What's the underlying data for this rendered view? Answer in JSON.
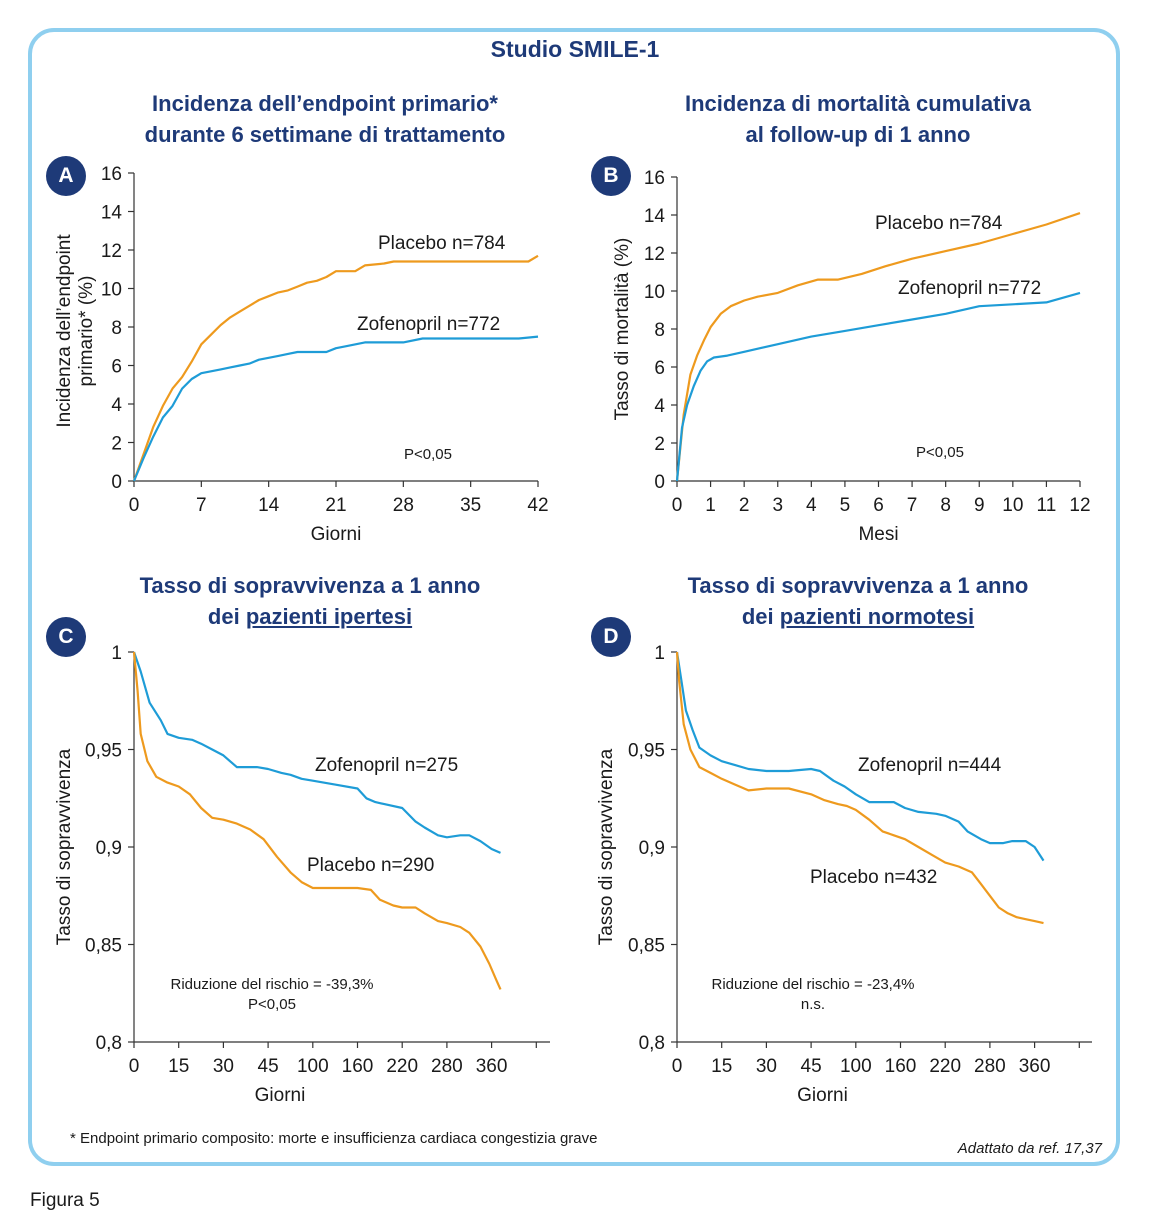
{
  "study_title": "Studio SMILE-1",
  "footnote": "* Endpoint primario composito: morte e insufficienza cardiaca congestizia grave",
  "source": "Adattato da ref. 17,37",
  "figure_label": "Figura 5",
  "colors": {
    "zofenopril": "#1e9cd7",
    "placebo": "#ee9a1e",
    "title": "#1e3a78",
    "frame": "#8fcfef"
  },
  "panels": {
    "A": {
      "badge": "A",
      "title_line1": "Incidenza dell’endpoint primario*",
      "title_line2": "durante 6 settimane di trattamento"
    },
    "B": {
      "badge": "B",
      "title_line1": "Incidenza di mortalità cumulativa",
      "title_line2": "al follow-up di 1 anno"
    },
    "C": {
      "badge": "C",
      "title_line1": "Tasso di sopravvivenza a 1 anno",
      "title_line2_prefix": "dei ",
      "title_line2_underlined": "pazienti ipertesi"
    },
    "D": {
      "badge": "D",
      "title_line1": "Tasso di sopravvivenza a 1 anno",
      "title_line2_prefix": "dei ",
      "title_line2_underlined": "pazienti normotesi"
    }
  },
  "chart_data": [
    {
      "id": "A",
      "type": "line",
      "xlabel": "Giorni",
      "ylabel_lines": [
        "Incidenza dell’endpoint",
        "primario* (%)"
      ],
      "xlim": [
        0,
        42
      ],
      "ylim": [
        0,
        16
      ],
      "xticks": [
        0,
        7,
        14,
        21,
        28,
        35,
        42
      ],
      "xtick_labels": [
        "0",
        "7",
        "14",
        "21",
        "28",
        "35",
        "42"
      ],
      "yticks": [
        0,
        2,
        4,
        6,
        8,
        10,
        12,
        14,
        16
      ],
      "ytick_labels": [
        "0",
        "2",
        "4",
        "6",
        "8",
        "10",
        "12",
        "14",
        "16"
      ],
      "annotations": [
        "P<0,05"
      ],
      "series": [
        {
          "name": "Placebo n=784",
          "color": "#ee9a1e",
          "x": [
            0,
            1,
            2,
            3,
            4,
            5,
            6,
            7,
            8,
            9,
            10,
            11,
            12,
            13,
            14,
            15,
            16,
            17,
            18,
            19,
            20,
            21,
            22,
            23,
            24,
            26,
            27,
            28,
            30,
            32,
            33,
            35,
            37,
            39,
            41,
            42
          ],
          "y": [
            0,
            1.4,
            2.8,
            3.9,
            4.8,
            5.4,
            6.2,
            7.1,
            7.6,
            8.1,
            8.5,
            8.8,
            9.1,
            9.4,
            9.6,
            9.8,
            9.9,
            10.1,
            10.3,
            10.4,
            10.6,
            10.9,
            10.9,
            10.9,
            11.2,
            11.3,
            11.4,
            11.4,
            11.4,
            11.4,
            11.4,
            11.4,
            11.4,
            11.4,
            11.4,
            11.7
          ]
        },
        {
          "name": "Zofenopril n=772",
          "color": "#1e9cd7",
          "x": [
            0,
            1,
            2,
            3,
            4,
            5,
            6,
            7,
            8,
            9,
            10,
            11,
            12,
            13,
            14,
            15,
            16,
            17,
            18,
            19,
            20,
            21,
            22,
            24,
            26,
            28,
            30,
            32,
            34,
            36,
            38,
            40,
            42
          ],
          "y": [
            0,
            1.2,
            2.3,
            3.3,
            3.9,
            4.8,
            5.3,
            5.6,
            5.7,
            5.8,
            5.9,
            6.0,
            6.1,
            6.3,
            6.4,
            6.5,
            6.6,
            6.7,
            6.7,
            6.7,
            6.7,
            6.9,
            7.0,
            7.2,
            7.2,
            7.2,
            7.4,
            7.4,
            7.4,
            7.4,
            7.4,
            7.4,
            7.5
          ]
        }
      ]
    },
    {
      "id": "B",
      "type": "line",
      "xlabel": "Mesi",
      "ylabel_lines": [
        "Tasso di mortalità (%)"
      ],
      "xlim": [
        0,
        12
      ],
      "ylim": [
        0,
        16
      ],
      "xticks": [
        0,
        1,
        2,
        3,
        4,
        5,
        6,
        7,
        8,
        9,
        10,
        11,
        12
      ],
      "xtick_labels": [
        "0",
        "1",
        "2",
        "3",
        "4",
        "5",
        "6",
        "7",
        "8",
        "9",
        "10",
        "11",
        "12"
      ],
      "yticks": [
        0,
        2,
        4,
        6,
        8,
        10,
        12,
        14,
        16
      ],
      "ytick_labels": [
        "0",
        "2",
        "4",
        "6",
        "8",
        "10",
        "12",
        "14",
        "16"
      ],
      "annotations": [
        "P<0,05"
      ],
      "series": [
        {
          "name": "Placebo n=784",
          "color": "#ee9a1e",
          "x": [
            0,
            0.2,
            0.4,
            0.6,
            0.8,
            1.0,
            1.3,
            1.6,
            2.0,
            2.4,
            3.0,
            3.6,
            4.2,
            4.8,
            5.5,
            6.2,
            7.0,
            8.0,
            9.0,
            10.0,
            11.0,
            12.0
          ],
          "y": [
            0,
            3.5,
            5.6,
            6.6,
            7.4,
            8.1,
            8.8,
            9.2,
            9.5,
            9.7,
            9.9,
            10.3,
            10.6,
            10.6,
            10.9,
            11.3,
            11.7,
            12.1,
            12.5,
            13.0,
            13.5,
            14.1
          ]
        },
        {
          "name": "Zofenopril n=772",
          "color": "#1e9cd7",
          "x": [
            0,
            0.15,
            0.3,
            0.5,
            0.7,
            0.9,
            1.1,
            1.5,
            2.0,
            3.0,
            4.0,
            5.0,
            6.0,
            7.0,
            8.0,
            9.0,
            10.0,
            11.0,
            12.0
          ],
          "y": [
            0,
            2.8,
            4.0,
            5.0,
            5.8,
            6.3,
            6.5,
            6.6,
            6.8,
            7.2,
            7.6,
            7.9,
            8.2,
            8.5,
            8.8,
            9.2,
            9.3,
            9.4,
            9.9
          ]
        }
      ]
    },
    {
      "id": "C",
      "type": "line",
      "xlabel": "Giorni",
      "ylabel_lines": [
        "Tasso di sopravvivenza"
      ],
      "ylim": [
        0.8,
        1.0
      ],
      "xtick_labels": [
        "0",
        "15",
        "30",
        "45",
        "100",
        "160",
        "220",
        "280",
        "360"
      ],
      "yticks": [
        0.8,
        0.85,
        0.9,
        0.95,
        1.0
      ],
      "ytick_labels": [
        "0,8",
        "0,85",
        "0,9",
        "0,95",
        "1"
      ],
      "annotations": [
        "Riduzione del rischio = -39,3%",
        "P<0,05"
      ],
      "series": [
        {
          "name": "Zofenopril n=275",
          "color": "#1e9cd7",
          "x_index": [
            0,
            0.15,
            0.35,
            0.6,
            0.75,
            1.0,
            1.3,
            1.5,
            1.75,
            2.0,
            2.3,
            2.5,
            2.75,
            3.0,
            3.3,
            3.5,
            3.75,
            4.0,
            4.5,
            5.0,
            5.2,
            5.4,
            5.6,
            6.0,
            6.3,
            6.5,
            6.8,
            7.0,
            7.3,
            7.5,
            7.75,
            8.0,
            8.2
          ],
          "y": [
            1.0,
            0.99,
            0.974,
            0.965,
            0.958,
            0.956,
            0.955,
            0.953,
            0.95,
            0.947,
            0.941,
            0.941,
            0.941,
            0.94,
            0.938,
            0.937,
            0.935,
            0.934,
            0.932,
            0.93,
            0.925,
            0.923,
            0.922,
            0.92,
            0.913,
            0.91,
            0.906,
            0.905,
            0.906,
            0.906,
            0.903,
            0.899,
            0.897
          ]
        },
        {
          "name": "Placebo n=290",
          "color": "#ee9a1e",
          "x_index": [
            0,
            0.08,
            0.15,
            0.3,
            0.5,
            0.75,
            1.0,
            1.25,
            1.5,
            1.75,
            2.0,
            2.3,
            2.6,
            2.9,
            3.2,
            3.5,
            3.75,
            4.0,
            4.5,
            5.0,
            5.3,
            5.5,
            5.8,
            6.0,
            6.3,
            6.5,
            6.8,
            7.0,
            7.3,
            7.5,
            7.75,
            7.95,
            8.1,
            8.2
          ],
          "y": [
            1.0,
            0.98,
            0.958,
            0.944,
            0.936,
            0.933,
            0.931,
            0.927,
            0.92,
            0.915,
            0.914,
            0.912,
            0.909,
            0.904,
            0.895,
            0.887,
            0.882,
            0.879,
            0.879,
            0.879,
            0.878,
            0.873,
            0.87,
            0.869,
            0.869,
            0.866,
            0.862,
            0.861,
            0.859,
            0.856,
            0.849,
            0.84,
            0.832,
            0.827
          ]
        }
      ]
    },
    {
      "id": "D",
      "type": "line",
      "xlabel": "Giorni",
      "ylabel_lines": [
        "Tasso di sopravvivenza"
      ],
      "ylim": [
        0.8,
        1.0
      ],
      "xtick_labels": [
        "0",
        "15",
        "30",
        "45",
        "100",
        "160",
        "220",
        "280",
        "360"
      ],
      "yticks": [
        0.8,
        0.85,
        0.9,
        0.95,
        1.0
      ],
      "ytick_labels": [
        "0,8",
        "0,85",
        "0,9",
        "0,95",
        "1"
      ],
      "annotations": [
        "Riduzione del rischio = -23,4%",
        "n.s."
      ],
      "series": [
        {
          "name": "Zofenopril n=444",
          "color": "#1e9cd7",
          "x_index": [
            0,
            0.1,
            0.2,
            0.35,
            0.5,
            0.75,
            1.0,
            1.3,
            1.6,
            2.0,
            2.5,
            3.0,
            3.2,
            3.5,
            3.75,
            4.0,
            4.3,
            4.6,
            4.85,
            5.1,
            5.4,
            5.8,
            6.0,
            6.3,
            6.5,
            6.8,
            7.0,
            7.3,
            7.5,
            7.8,
            8.0,
            8.2
          ],
          "y": [
            1.0,
            0.985,
            0.97,
            0.96,
            0.951,
            0.947,
            0.944,
            0.942,
            0.94,
            0.939,
            0.939,
            0.94,
            0.939,
            0.934,
            0.931,
            0.927,
            0.923,
            0.923,
            0.923,
            0.92,
            0.918,
            0.917,
            0.916,
            0.913,
            0.908,
            0.904,
            0.902,
            0.902,
            0.903,
            0.903,
            0.9,
            0.893
          ]
        },
        {
          "name": "Placebo n=432",
          "color": "#ee9a1e",
          "x_index": [
            0,
            0.05,
            0.15,
            0.3,
            0.5,
            0.75,
            1.0,
            1.3,
            1.6,
            2.0,
            2.5,
            3.0,
            3.3,
            3.6,
            3.8,
            4.0,
            4.3,
            4.6,
            4.85,
            5.1,
            5.4,
            5.7,
            6.0,
            6.3,
            6.6,
            6.8,
            7.0,
            7.2,
            7.4,
            7.6,
            7.8,
            8.0,
            8.2
          ],
          "y": [
            1.0,
            0.985,
            0.963,
            0.95,
            0.941,
            0.938,
            0.935,
            0.932,
            0.929,
            0.93,
            0.93,
            0.927,
            0.924,
            0.922,
            0.921,
            0.919,
            0.914,
            0.908,
            0.906,
            0.904,
            0.9,
            0.896,
            0.892,
            0.89,
            0.887,
            0.881,
            0.875,
            0.869,
            0.866,
            0.864,
            0.863,
            0.862,
            0.861
          ]
        }
      ]
    }
  ]
}
